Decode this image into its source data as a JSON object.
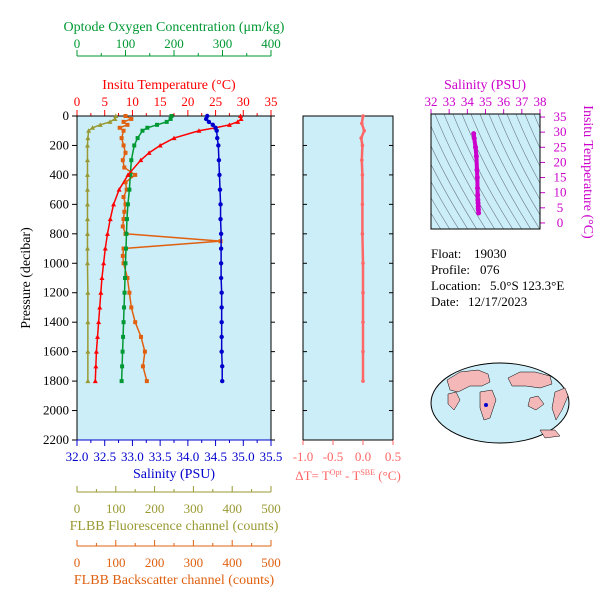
{
  "info": {
    "float_label": "Float:",
    "float_value": "19030",
    "profile_label": "Profile:",
    "profile_value": "076",
    "location_label": "Location:",
    "location_value": "5.0°S 123.3°E",
    "date_label": "Date:",
    "date_value": "12/17/2023"
  },
  "colors": {
    "oxygen": "#009933",
    "temperature": "#ff0000",
    "salinity": "#0000cc",
    "fluorescence": "#999933",
    "backscatter": "#e06010",
    "delta_t": "#ff6666",
    "ts_salinity": "#cc00cc",
    "plot_bg": "#cceef8",
    "land": "#f4b8b8"
  },
  "chart_data": [
    {
      "type": "line",
      "name": "main-profile",
      "y_axis": {
        "label": "Pressure (decibar)",
        "range": [
          0,
          2200
        ],
        "ticks": [
          "0",
          "200",
          "400",
          "600",
          "800",
          "1000",
          "1200",
          "1400",
          "1600",
          "1800",
          "2000",
          "2200"
        ],
        "inverted": true
      },
      "axes": {
        "oxygen": {
          "label": "Optode Oxygen Concentration (μm/kg)",
          "range": [
            0,
            400
          ],
          "ticks": [
            "0",
            "100",
            "200",
            "300",
            "400"
          ]
        },
        "temperature": {
          "label": "Insitu Temperature (°C)",
          "range": [
            0,
            35
          ],
          "ticks": [
            "0",
            "5",
            "10",
            "15",
            "20",
            "25",
            "30",
            "35"
          ]
        },
        "salinity": {
          "label": "Salinity (PSU)",
          "range": [
            32.0,
            35.5
          ],
          "ticks": [
            "32.0",
            "32.5",
            "33.0",
            "33.5",
            "34.0",
            "34.5",
            "35.0",
            "35.5"
          ]
        },
        "fluorescence": {
          "label": "FLBB Fluorescence channel (counts)",
          "range": [
            0,
            500
          ],
          "ticks": [
            "0",
            "100",
            "200",
            "300",
            "400",
            "500"
          ]
        },
        "backscatter": {
          "label": "FLBB Backscatter channel (counts)",
          "range": [
            0,
            500
          ],
          "ticks": [
            "0",
            "100",
            "200",
            "300",
            "400",
            "500"
          ]
        }
      },
      "series": {
        "temperature": {
          "pressure": [
            0,
            20,
            40,
            60,
            80,
            100,
            150,
            200,
            250,
            300,
            400,
            500,
            600,
            700,
            800,
            900,
            1000,
            1100,
            1200,
            1300,
            1400,
            1500,
            1600,
            1700,
            1800
          ],
          "values": [
            29.5,
            29.6,
            29.0,
            27.5,
            25.0,
            22.0,
            17.5,
            15.0,
            13.0,
            11.5,
            9.2,
            7.6,
            6.6,
            6.0,
            5.5,
            5.1,
            4.8,
            4.5,
            4.3,
            4.1,
            3.9,
            3.7,
            3.5,
            3.4,
            3.3
          ]
        },
        "salinity": {
          "pressure": [
            0,
            20,
            40,
            60,
            80,
            100,
            150,
            200,
            300,
            400,
            500,
            600,
            700,
            800,
            900,
            1000,
            1100,
            1200,
            1300,
            1400,
            1500,
            1600,
            1700,
            1800
          ],
          "values": [
            34.35,
            34.33,
            34.38,
            34.45,
            34.5,
            34.52,
            34.53,
            34.55,
            34.56,
            34.57,
            34.58,
            34.59,
            34.59,
            34.6,
            34.6,
            34.6,
            34.6,
            34.61,
            34.61,
            34.61,
            34.61,
            34.61,
            34.62,
            34.62
          ]
        },
        "oxygen": {
          "pressure": [
            0,
            20,
            40,
            60,
            80,
            100,
            150,
            200,
            300,
            400,
            500,
            600,
            700,
            800,
            900,
            1000,
            1100,
            1200,
            1300,
            1400,
            1500,
            1600,
            1700,
            1800
          ],
          "values": [
            195,
            193,
            185,
            165,
            145,
            135,
            125,
            118,
            112,
            110,
            108,
            105,
            103,
            102,
            101,
            100,
            99,
            98,
            97,
            96,
            95,
            94,
            93,
            92
          ]
        },
        "fluorescence": {
          "pressure": [
            0,
            20,
            40,
            60,
            80,
            100,
            150,
            200,
            300,
            400,
            500,
            600,
            700,
            800,
            900,
            1000,
            1200,
            1400,
            1600,
            1800
          ],
          "values": [
            100,
            98,
            85,
            60,
            40,
            30,
            28,
            27,
            27,
            27,
            27,
            27,
            27,
            27,
            27,
            27,
            28,
            28,
            28,
            28
          ]
        },
        "backscatter": {
          "pressure": [
            0,
            20,
            40,
            60,
            80,
            100,
            150,
            200,
            250,
            300,
            350,
            400,
            450,
            500,
            550,
            600,
            650,
            700,
            750,
            800,
            850,
            900,
            950,
            1000,
            1100,
            1200,
            1300,
            1400,
            1500,
            1600,
            1700,
            1800
          ],
          "values": [
            125,
            140,
            120,
            130,
            110,
            120,
            115,
            120,
            125,
            118,
            122,
            150,
            125,
            128,
            120,
            125,
            122,
            120,
            118,
            125,
            370,
            120,
            118,
            120,
            130,
            135,
            140,
            150,
            165,
            175,
            170,
            180
          ]
        }
      }
    },
    {
      "type": "line",
      "name": "delta-t",
      "x_axis": {
        "label": "ΔT= T^Opt - T^SBE (°C)",
        "range": [
          -1.0,
          0.5
        ],
        "ticks": [
          "-1.0",
          "-0.5",
          "0.0",
          "0.5"
        ]
      },
      "series": {
        "pressure": [
          0,
          50,
          100,
          150,
          200,
          300,
          400,
          600,
          800,
          1000,
          1200,
          1400,
          1600,
          1800
        ],
        "values": [
          0.0,
          -0.02,
          0.02,
          -0.03,
          -0.01,
          -0.02,
          -0.01,
          -0.01,
          -0.01,
          0.0,
          0.0,
          0.0,
          0.0,
          0.0
        ]
      }
    },
    {
      "type": "scatter",
      "name": "ts-diagram",
      "x_axis": {
        "label": "Salinity (PSU)",
        "range": [
          32,
          38
        ],
        "ticks": [
          "32",
          "33",
          "34",
          "35",
          "36",
          "37",
          "38"
        ]
      },
      "y_axis": {
        "label": "Insitu Temperature (°C)",
        "range": [
          -2,
          36
        ],
        "ticks": [
          "0",
          "5",
          "10",
          "15",
          "20",
          "25",
          "30",
          "35"
        ]
      },
      "points": [
        [
          34.35,
          29.5
        ],
        [
          34.38,
          28.0
        ],
        [
          34.45,
          25.0
        ],
        [
          34.5,
          22.0
        ],
        [
          34.53,
          17.5
        ],
        [
          34.55,
          15.0
        ],
        [
          34.56,
          11.5
        ],
        [
          34.57,
          9.2
        ],
        [
          34.58,
          7.6
        ],
        [
          34.59,
          6.6
        ],
        [
          34.6,
          5.5
        ],
        [
          34.6,
          4.8
        ],
        [
          34.61,
          4.3
        ],
        [
          34.62,
          3.3
        ]
      ]
    }
  ]
}
